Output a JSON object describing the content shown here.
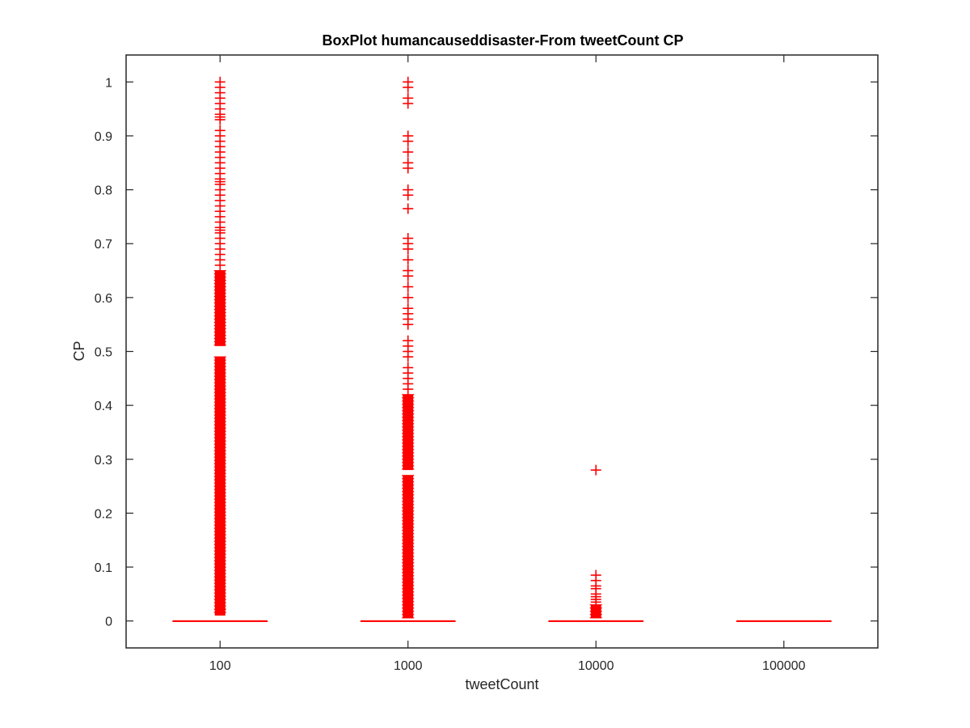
{
  "chart_data": {
    "type": "boxplot",
    "title": "BoxPlot humancauseddisaster-From tweetCount CP",
    "xlabel": "tweetCount",
    "ylabel": "CP",
    "ylim": [
      -0.05,
      1.05
    ],
    "yticks": [
      0,
      0.1,
      0.2,
      0.3,
      0.4,
      0.5,
      0.6,
      0.7,
      0.8,
      0.9,
      1
    ],
    "ytick_labels": [
      "0",
      "0.1",
      "0.2",
      "0.3",
      "0.4",
      "0.5",
      "0.6",
      "0.7",
      "0.8",
      "0.9",
      "1"
    ],
    "categories": [
      "100",
      "1000",
      "10000",
      "100000"
    ],
    "color": "#ff0000",
    "axis_color": "#262626",
    "grid": false,
    "boxes": [
      {
        "category": "100",
        "median": 0,
        "q1": 0,
        "q3": 0,
        "whisker_low": 0,
        "whisker_high": 0,
        "outlier_dense_ranges": [
          [
            0.01,
            0.49
          ],
          [
            0.51,
            0.65
          ]
        ],
        "outliers": [
          0.66,
          0.67,
          0.68,
          0.69,
          0.7,
          0.71,
          0.72,
          0.725,
          0.73,
          0.74,
          0.75,
          0.76,
          0.77,
          0.78,
          0.79,
          0.8,
          0.81,
          0.815,
          0.82,
          0.83,
          0.84,
          0.85,
          0.86,
          0.87,
          0.88,
          0.89,
          0.9,
          0.91,
          0.93,
          0.935,
          0.94,
          0.95,
          0.96,
          0.97,
          0.98,
          0.99,
          1.0
        ]
      },
      {
        "category": "1000",
        "median": 0,
        "q1": 0,
        "q3": 0,
        "whisker_low": 0,
        "whisker_high": 0,
        "outlier_dense_ranges": [
          [
            0.005,
            0.27
          ],
          [
            0.28,
            0.42
          ]
        ],
        "outliers": [
          0.43,
          0.44,
          0.45,
          0.46,
          0.47,
          0.49,
          0.5,
          0.51,
          0.52,
          0.55,
          0.56,
          0.57,
          0.58,
          0.6,
          0.62,
          0.64,
          0.65,
          0.67,
          0.69,
          0.7,
          0.71,
          0.765,
          0.79,
          0.8,
          0.84,
          0.85,
          0.87,
          0.89,
          0.9,
          0.96,
          0.97,
          0.99,
          1.0
        ]
      },
      {
        "category": "10000",
        "median": 0,
        "q1": 0,
        "q3": 0,
        "whisker_low": 0,
        "whisker_high": 0,
        "outlier_dense_ranges": [
          [
            0.005,
            0.03
          ]
        ],
        "outliers": [
          0.035,
          0.04,
          0.045,
          0.05,
          0.06,
          0.065,
          0.075,
          0.085,
          0.28
        ]
      },
      {
        "category": "100000",
        "median": 0,
        "q1": 0,
        "q3": 0,
        "whisker_low": 0,
        "whisker_high": 0,
        "outlier_dense_ranges": [],
        "outliers": []
      }
    ]
  }
}
